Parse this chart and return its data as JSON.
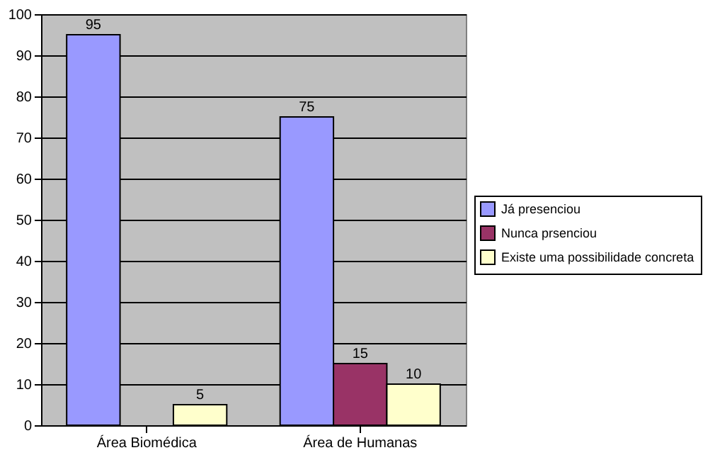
{
  "chart_data": {
    "type": "bar",
    "categories": [
      "Área Biomédica",
      "Área de Humanas"
    ],
    "series": [
      {
        "name": "Já presenciou",
        "color": "#9999ff",
        "values": [
          95,
          75
        ]
      },
      {
        "name": "Nunca prsenciou",
        "color": "#993366",
        "values": [
          null,
          15
        ]
      },
      {
        "name": "Existe uma possibilidade concreta",
        "color": "#ffffcc",
        "values": [
          5,
          10
        ]
      }
    ],
    "ylim": [
      0,
      100
    ],
    "yticks": [
      0,
      10,
      20,
      30,
      40,
      50,
      60,
      70,
      80,
      90,
      100
    ],
    "grid": "y",
    "legend": "right",
    "data_labels": true
  }
}
